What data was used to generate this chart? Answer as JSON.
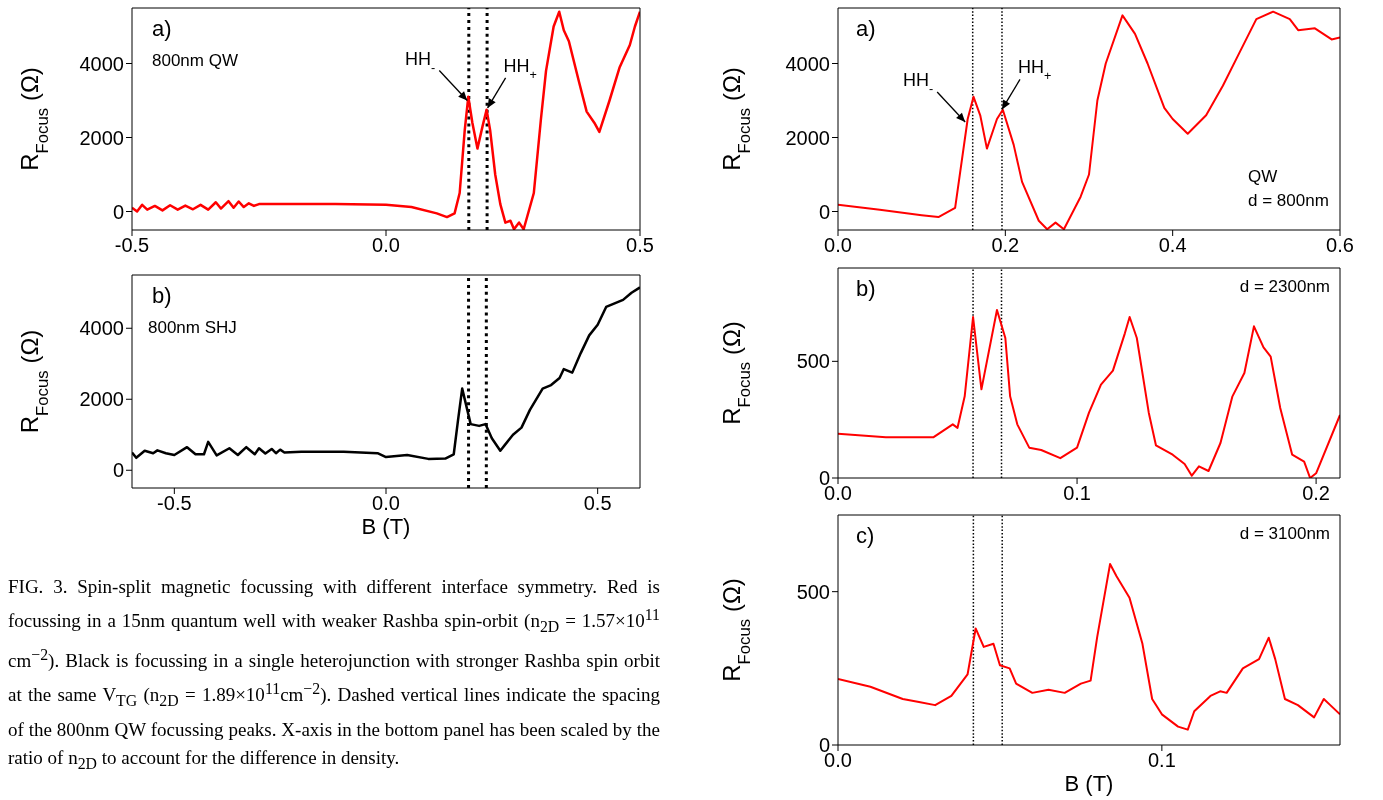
{
  "chart_data": [
    {
      "type": "line",
      "annotations": [
        "a)",
        "800nm QW",
        {
          "text": "HH$_{-}$",
          "x": 0.16,
          "y": 3000
        },
        {
          "text": "HH$_{+}$",
          "x": 0.2,
          "y": 2800
        }
      ],
      "ylabel": "R$_{Focus}$ (Ω)",
      "xlim": [
        -0.5,
        0.5
      ],
      "xticks": [
        {
          "value": -0.5,
          "label": "-0.5"
        },
        {
          "value": 0,
          "label": "0.0"
        },
        {
          "value": 0.5,
          "label": "0.5"
        }
      ],
      "ylim": [
        -500,
        5500
      ],
      "yticks": [
        0,
        2000,
        4000
      ],
      "line_style": "solid",
      "x": [
        -0.5,
        -0.49,
        -0.48,
        -0.47,
        -0.455,
        -0.44,
        -0.425,
        -0.41,
        -0.395,
        -0.38,
        -0.365,
        -0.35,
        -0.335,
        -0.325,
        -0.31,
        -0.3,
        -0.29,
        -0.28,
        -0.27,
        -0.26,
        -0.25,
        -0.2,
        -0.1,
        0,
        0.05,
        0.1,
        0.12,
        0.135,
        0.145,
        0.155,
        0.162,
        0.17,
        0.18,
        0.19,
        0.198,
        0.205,
        0.215,
        0.225,
        0.235,
        0.245,
        0.252,
        0.262,
        0.271,
        0.291,
        0.305,
        0.315,
        0.33,
        0.341,
        0.35,
        0.36,
        0.38,
        0.395,
        0.41,
        0.42,
        0.44,
        0.46,
        0.48,
        0.49,
        0.5
      ],
      "series": [
        {
          "color": "#ff0000",
          "values": [
            100,
            0,
            180,
            50,
            150,
            30,
            170,
            50,
            160,
            60,
            180,
            50,
            250,
            80,
            280,
            100,
            270,
            120,
            220,
            150,
            200,
            200,
            200,
            180,
            120,
            -50,
            -150,
            -50,
            500,
            2200,
            3100,
            2400,
            1700,
            2300,
            2750,
            2200,
            1000,
            200,
            -300,
            -250,
            -480,
            -300,
            -480,
            500,
            2500,
            3800,
            5000,
            5400,
            4900,
            4600,
            3500,
            2700,
            2400,
            2150,
            3000,
            3900,
            4500,
            5000,
            5400
          ]
        }
      ],
      "ref_lines": [
        {
          "axis": "x",
          "value": 0.163,
          "color": "#000000",
          "line_style": "dotted"
        },
        {
          "axis": "x",
          "value": 0.199,
          "color": "#000000",
          "line_style": "dotted"
        }
      ]
    },
    {
      "type": "line",
      "annotations": [
        "b)",
        "800nm SHJ",
        "FIG. 3. Spin-split magnetic focussing with different interface symmetry. Red is focussing in a 15nm quantum well with weaker Rashba spin-orbit (n$_{2D}$ = 1.57×10$^{11}$ cm$^{−2}$). Black is focussing in a single heterojunction with stronger Rashba spin orbit at the same V$_{TG}$ (n$_{2D}$ = 1.89×10$^{11}$cm$^{−2}$). Dashed vertical lines indicate the spacing of the 800nm QW focussing peaks. X-axis in the bottom panel has been scaled by the ratio of n$_{2D}$ to account for the difference in density."
      ],
      "xlabel": "B (T)",
      "ylabel": "R$_{Focus}$ (Ω)",
      "xlim": [
        -0.6,
        0.6
      ],
      "xticks": [
        {
          "value": -0.5,
          "label": "-0.5"
        },
        {
          "value": 0,
          "label": "0.0"
        },
        {
          "value": 0.5,
          "label": "0.5"
        }
      ],
      "ylim": [
        -500,
        5500
      ],
      "yticks": [
        0,
        2000,
        4000
      ],
      "line_style": "solid",
      "x": [
        -0.6,
        -0.59,
        -0.57,
        -0.55,
        -0.54,
        -0.52,
        -0.5,
        -0.47,
        -0.45,
        -0.43,
        -0.42,
        -0.4,
        -0.37,
        -0.35,
        -0.33,
        -0.31,
        -0.3,
        -0.285,
        -0.27,
        -0.26,
        -0.25,
        -0.24,
        -0.2,
        -0.1,
        -0.02,
        0,
        0.05,
        0.1,
        0.14,
        0.16,
        0.17,
        0.18,
        0.19,
        0.2,
        0.22,
        0.235,
        0.25,
        0.27,
        0.28,
        0.3,
        0.32,
        0.34,
        0.37,
        0.39,
        0.41,
        0.42,
        0.44,
        0.46,
        0.48,
        0.5,
        0.52,
        0.54,
        0.56,
        0.58,
        0.6
      ],
      "series": [
        {
          "color": "#000000",
          "values": [
            500,
            350,
            550,
            480,
            560,
            480,
            430,
            650,
            450,
            450,
            800,
            420,
            620,
            430,
            650,
            450,
            620,
            470,
            600,
            480,
            580,
            500,
            520,
            520,
            480,
            370,
            430,
            320,
            330,
            450,
            1400,
            2300,
            1800,
            1300,
            1250,
            1300,
            900,
            550,
            700,
            1000,
            1200,
            1700,
            2300,
            2400,
            2600,
            2850,
            2750,
            3300,
            3800,
            4100,
            4600,
            4700,
            4800,
            5000,
            5150
          ]
        }
      ],
      "ref_lines": [
        {
          "axis": "x",
          "value": 0.195,
          "color": "#000000",
          "line_style": "dotted"
        },
        {
          "axis": "x",
          "value": 0.237,
          "color": "#000000",
          "line_style": "dotted"
        }
      ]
    },
    {
      "type": "line",
      "annotations": [
        "a)",
        "QW",
        "d = 800nm",
        {
          "text": "HH$_{-}$",
          "x": 0.152,
          "y": 2420
        },
        {
          "text": "HH$_{+}$",
          "x": 0.196,
          "y": 2760
        }
      ],
      "ylabel": "R$_{Focus}$ (Ω)",
      "xlim": [
        0,
        0.6
      ],
      "xticks": [
        {
          "value": 0,
          "label": "0.0"
        },
        0.2,
        0.4,
        0.6
      ],
      "ylim": [
        -500,
        5500
      ],
      "yticks": [
        0,
        2000,
        4000
      ],
      "line_style": "solid",
      "x": [
        0,
        0.05,
        0.1,
        0.12,
        0.14,
        0.155,
        0.162,
        0.17,
        0.178,
        0.19,
        0.197,
        0.21,
        0.22,
        0.24,
        0.25,
        0.26,
        0.27,
        0.29,
        0.3,
        0.31,
        0.32,
        0.34,
        0.355,
        0.37,
        0.39,
        0.4,
        0.418,
        0.44,
        0.46,
        0.48,
        0.5,
        0.52,
        0.54,
        0.55,
        0.57,
        0.59,
        0.6
      ],
      "series": [
        {
          "color": "#ff0000",
          "values": [
            180,
            50,
            -100,
            -150,
            100,
            2500,
            3100,
            2600,
            1700,
            2500,
            2750,
            1800,
            800,
            -250,
            -480,
            -300,
            -480,
            400,
            1000,
            3000,
            4000,
            5300,
            4800,
            4000,
            2800,
            2500,
            2100,
            2600,
            3400,
            4300,
            5200,
            5400,
            5200,
            4900,
            4950,
            4650,
            4700
          ]
        }
      ],
      "ref_lines": [
        {
          "axis": "x",
          "value": 0.161,
          "color": "#000000",
          "line_style": "dotted"
        },
        {
          "axis": "x",
          "value": 0.196,
          "color": "#000000",
          "line_style": "dotted"
        }
      ]
    },
    {
      "type": "line",
      "annotations": [
        "b)",
        "d = 2300nm"
      ],
      "ylabel": "R$_{Focus}$ (Ω)",
      "xlim": [
        0,
        0.21
      ],
      "xticks": [
        {
          "value": 0,
          "label": "0.0"
        },
        0.1,
        0.2
      ],
      "ylim": [
        0,
        900
      ],
      "yticks": [
        0,
        500
      ],
      "line_style": "solid",
      "x": [
        0,
        0.02,
        0.04,
        0.048,
        0.05,
        0.053,
        0.0565,
        0.06,
        0.0665,
        0.07,
        0.072,
        0.075,
        0.08,
        0.085,
        0.093,
        0.1,
        0.105,
        0.11,
        0.115,
        0.12,
        0.122,
        0.125,
        0.13,
        0.133,
        0.14,
        0.145,
        0.148,
        0.151,
        0.155,
        0.16,
        0.165,
        0.17,
        0.174,
        0.178,
        0.181,
        0.185,
        0.19,
        0.195,
        0.1975,
        0.2,
        0.21
      ],
      "series": [
        {
          "color": "#ff0000",
          "values": [
            190,
            175,
            175,
            230,
            215,
            350,
            690,
            380,
            720,
            600,
            350,
            230,
            130,
            120,
            85,
            130,
            280,
            400,
            460,
            620,
            690,
            600,
            280,
            140,
            100,
            60,
            10,
            50,
            30,
            150,
            350,
            450,
            650,
            560,
            520,
            300,
            100,
            70,
            0,
            20,
            270
          ]
        }
      ],
      "ref_lines": [
        {
          "axis": "x",
          "value": 0.0565,
          "color": "#000000",
          "line_style": "dotted"
        },
        {
          "axis": "x",
          "value": 0.0684,
          "color": "#000000",
          "line_style": "dotted"
        }
      ]
    },
    {
      "type": "line",
      "annotations": [
        "c)",
        "d = 3100nm"
      ],
      "xlabel": "B (T)",
      "ylabel": "R$_{Focus}$ (Ω)",
      "xlim": [
        0,
        0.155
      ],
      "xticks": [
        {
          "value": 0,
          "label": "0.0"
        },
        0.1
      ],
      "ylim": [
        0,
        750
      ],
      "yticks": [
        0,
        500
      ],
      "line_style": "solid",
      "x": [
        0,
        0.01,
        0.02,
        0.025,
        0.03,
        0.035,
        0.04,
        0.0425,
        0.045,
        0.048,
        0.05,
        0.053,
        0.055,
        0.06,
        0.065,
        0.07,
        0.075,
        0.078,
        0.08,
        0.084,
        0.086,
        0.09,
        0.094,
        0.097,
        0.1,
        0.105,
        0.108,
        0.11,
        0.115,
        0.118,
        0.12,
        0.125,
        0.13,
        0.133,
        0.135,
        0.138,
        0.142,
        0.147,
        0.15,
        0.152,
        0.155
      ],
      "series": [
        {
          "color": "#ff0000",
          "values": [
            215,
            190,
            150,
            140,
            130,
            160,
            230,
            380,
            320,
            330,
            260,
            250,
            200,
            170,
            180,
            170,
            200,
            210,
            350,
            590,
            550,
            480,
            330,
            150,
            100,
            60,
            50,
            110,
            160,
            175,
            170,
            250,
            280,
            350,
            280,
            150,
            130,
            90,
            150,
            130,
            100
          ]
        }
      ],
      "ref_lines": [
        {
          "axis": "x",
          "value": 0.0418,
          "color": "#000000",
          "line_style": "dotted"
        },
        {
          "axis": "x",
          "value": 0.0507,
          "color": "#000000",
          "line_style": "dotted"
        }
      ]
    }
  ]
}
